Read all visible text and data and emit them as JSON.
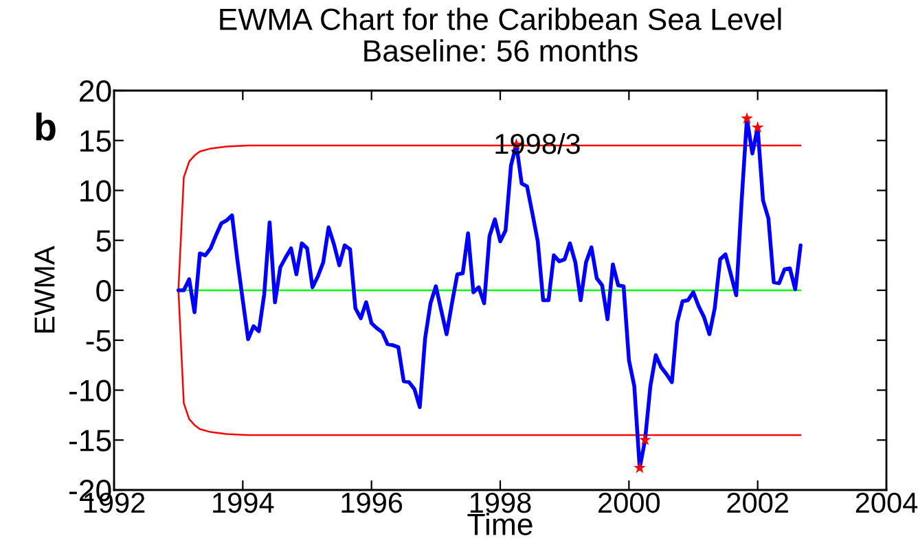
{
  "chart_data": {
    "type": "line",
    "title": "EWMA Chart for the Caribbean Sea Level",
    "subtitle": "Baseline: 56 months",
    "xlabel": "Time",
    "ylabel": "EWMA",
    "annotations": [
      "b",
      {
        "text": "1998/3",
        "x": 1998.25,
        "y": 14.6
      }
    ],
    "xlim": [
      1992,
      2004
    ],
    "xticks": [
      1992,
      1994,
      1996,
      1998,
      2000,
      2002,
      2004
    ],
    "ylim": [
      -20,
      20
    ],
    "yticks": [
      -20,
      -15,
      -10,
      -5,
      0,
      5,
      10,
      15,
      20
    ],
    "series": [
      {
        "color": "#00ff00",
        "x": [
          1993,
          2002.667
        ],
        "values": [
          0,
          0
        ]
      },
      {
        "color": "#ff0000",
        "x": [
          2002.667,
          1994.083,
          1993.75,
          1993.5,
          1993.333,
          1993.25,
          1993.167,
          1993.083,
          1993,
          1993.083,
          1993.167,
          1993.25,
          1993.333,
          1993.5,
          1993.75,
          1994.083,
          2002.667
        ],
        "values": [
          14.5,
          14.5,
          14.4,
          14.2,
          13.9,
          13.5,
          12.9,
          11.3,
          0,
          -11.3,
          -12.9,
          -13.5,
          -13.9,
          -14.2,
          -14.4,
          -14.5,
          -14.5
        ]
      },
      {
        "color": "#0000ff",
        "x": [
          1993,
          1993.083,
          1993.167,
          1993.25,
          1993.333,
          1993.417,
          1993.5,
          1993.583,
          1993.667,
          1993.75,
          1993.833,
          1993.917,
          1994,
          1994.083,
          1994.167,
          1994.25,
          1994.333,
          1994.417,
          1994.5,
          1994.583,
          1994.667,
          1994.75,
          1994.833,
          1994.917,
          1995,
          1995.083,
          1995.167,
          1995.25,
          1995.333,
          1995.417,
          1995.5,
          1995.583,
          1995.667,
          1995.75,
          1995.833,
          1995.917,
          1996,
          1996.083,
          1996.167,
          1996.25,
          1996.333,
          1996.417,
          1996.5,
          1996.583,
          1996.667,
          1996.75,
          1996.833,
          1996.917,
          1997,
          1997.083,
          1997.167,
          1997.25,
          1997.333,
          1997.417,
          1997.5,
          1997.583,
          1997.667,
          1997.75,
          1997.833,
          1997.917,
          1998,
          1998.083,
          1998.167,
          1998.25,
          1998.333,
          1998.417,
          1998.5,
          1998.583,
          1998.667,
          1998.75,
          1998.833,
          1998.917,
          1999,
          1999.083,
          1999.167,
          1999.25,
          1999.333,
          1999.417,
          1999.5,
          1999.583,
          1999.667,
          1999.75,
          1999.833,
          1999.917,
          2000,
          2000.083,
          2000.167,
          2000.25,
          2000.333,
          2000.417,
          2000.5,
          2000.583,
          2000.667,
          2000.75,
          2000.833,
          2000.917,
          2001,
          2001.083,
          2001.167,
          2001.25,
          2001.333,
          2001.417,
          2001.5,
          2001.583,
          2001.667,
          2001.75,
          2001.833,
          2001.917,
          2002,
          2002.083,
          2002.167,
          2002.25,
          2002.333,
          2002.417,
          2002.5,
          2002.583,
          2002.667
        ],
        "values": [
          0.0,
          0.0,
          1.1,
          -2.2,
          3.7,
          3.5,
          4.2,
          5.5,
          6.7,
          7.0,
          7.5,
          3.0,
          -1.0,
          -4.9,
          -3.6,
          -4.1,
          -0.4,
          6.8,
          -1.2,
          2.3,
          3.3,
          4.2,
          1.6,
          4.7,
          4.2,
          0.3,
          1.4,
          2.8,
          6.3,
          4.6,
          2.5,
          4.5,
          4.1,
          -1.8,
          -2.8,
          -1.2,
          -3.3,
          -3.8,
          -4.2,
          -5.4,
          -5.5,
          -5.7,
          -9.1,
          -9.2,
          -9.9,
          -11.7,
          -4.8,
          -1.3,
          0.4,
          -2.0,
          -4.4,
          -1.3,
          1.6,
          1.7,
          5.7,
          -0.2,
          0.3,
          -1.3,
          5.4,
          7.1,
          4.9,
          6.0,
          12.5,
          14.6,
          10.7,
          10.4,
          7.7,
          4.9,
          -1.0,
          -1.0,
          3.5,
          2.9,
          3.1,
          4.7,
          2.8,
          -1.0,
          2.8,
          4.3,
          1.2,
          0.5,
          -2.9,
          2.6,
          0.5,
          0.4,
          -7.0,
          -9.6,
          -17.8,
          -15.0,
          -9.6,
          -6.5,
          -7.7,
          -8.4,
          -9.2,
          -3.2,
          -1.1,
          -1.0,
          -0.2,
          -1.6,
          -2.7,
          -4.4,
          -1.8,
          3.1,
          3.6,
          1.6,
          -0.5,
          8.9,
          17.2,
          13.7,
          16.3,
          9.0,
          7.2,
          0.8,
          0.7,
          2.1,
          2.2,
          0.1,
          4.5
        ]
      },
      {
        "type": "scatter",
        "marker": "star",
        "color": "#ff0000",
        "x": [
          1998.25,
          2000.167,
          2000.25,
          2001.833,
          2002.0
        ],
        "values": [
          14.6,
          -17.8,
          -15.0,
          17.2,
          16.3
        ]
      }
    ]
  }
}
